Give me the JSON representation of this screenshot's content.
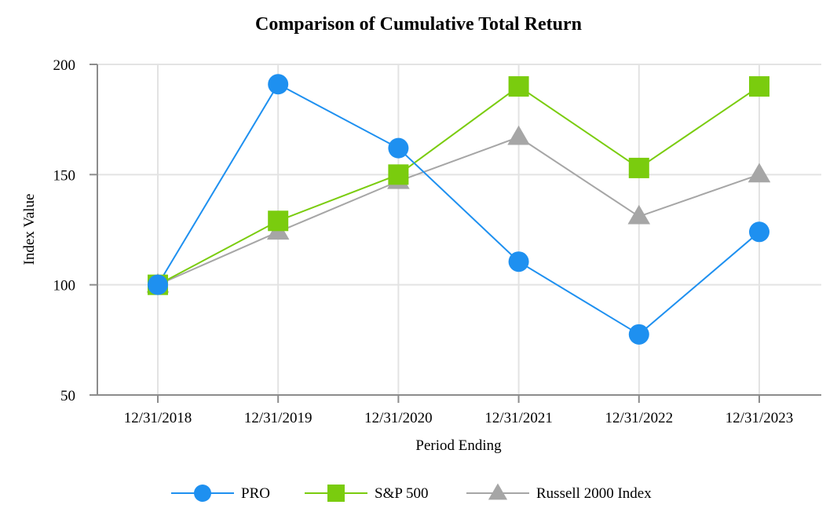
{
  "chart_data": {
    "type": "line",
    "title": "Comparison of Cumulative Total Return",
    "xlabel": "Period Ending",
    "ylabel": "Index Value",
    "categories": [
      "12/31/2018",
      "12/31/2019",
      "12/31/2020",
      "12/31/2021",
      "12/31/2022",
      "12/31/2023"
    ],
    "ylim": [
      50,
      200
    ],
    "yticks": [
      50,
      100,
      150,
      200
    ],
    "grid": true,
    "legend_position": "bottom",
    "series": [
      {
        "name": "PRO",
        "marker": "circle",
        "color": "#1e90f0",
        "values": [
          100,
          191,
          162,
          110.5,
          77.5,
          124
        ]
      },
      {
        "name": "S&P 500",
        "marker": "square",
        "color": "#7acc0e",
        "values": [
          100,
          129,
          150,
          190,
          153,
          190
        ]
      },
      {
        "name": "Russell 2000 Index",
        "marker": "triangle",
        "color": "#a6a6a6",
        "values": [
          100,
          124,
          147,
          167,
          131,
          150
        ]
      }
    ]
  }
}
